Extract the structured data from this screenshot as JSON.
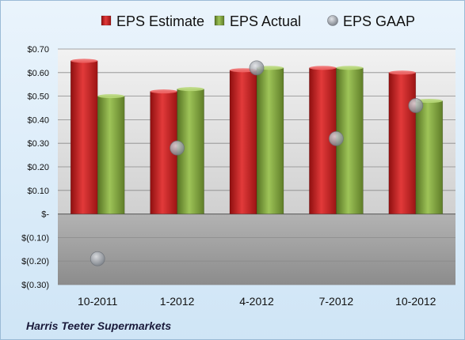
{
  "chart_data": {
    "type": "bar",
    "categories": [
      "10-2011",
      "1-2012",
      "4-2012",
      "7-2012",
      "10-2012"
    ],
    "series": [
      {
        "name": "EPS Estimate",
        "kind": "bar",
        "color": "#cc1f1f",
        "values": [
          0.65,
          0.52,
          0.61,
          0.62,
          0.6
        ]
      },
      {
        "name": "EPS Actual",
        "kind": "bar",
        "color": "#7fa23a",
        "values": [
          0.5,
          0.53,
          0.62,
          0.62,
          0.48
        ]
      },
      {
        "name": "EPS GAAP",
        "kind": "marker",
        "color": "#9aa0a8",
        "values": [
          -0.19,
          0.28,
          0.62,
          0.32,
          0.46
        ]
      }
    ],
    "ylim": [
      -0.3,
      0.7
    ],
    "yticks": [
      0.7,
      0.6,
      0.5,
      0.4,
      0.3,
      0.2,
      0.1,
      0.0,
      -0.1,
      -0.2,
      -0.3
    ],
    "ytick_labels": [
      "$0.70",
      "$0.60",
      "$0.50",
      "$0.40",
      "$0.30",
      "$0.20",
      "$0.10",
      "$-",
      "$(0.10)",
      "$(0.20)",
      "$(0.30)"
    ],
    "legend_position": "top",
    "grid": true,
    "footer": "Harris Teeter Supermarkets"
  }
}
